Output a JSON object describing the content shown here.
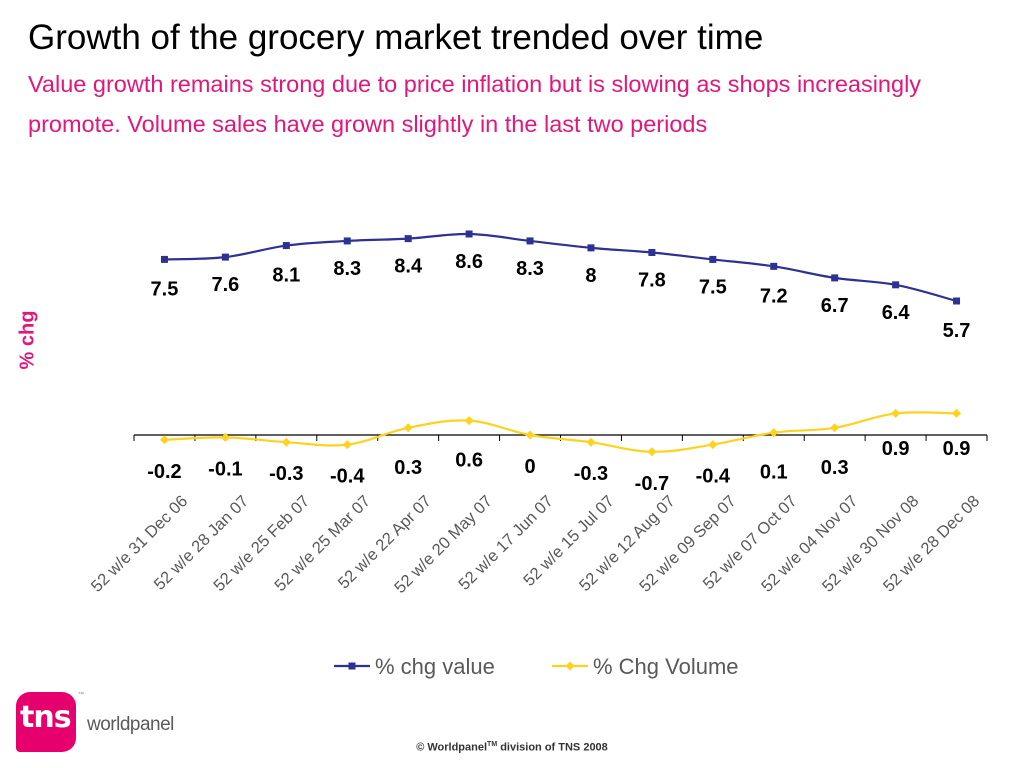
{
  "title": "Growth of the grocery market trended over time",
  "subtitle": "Value growth remains strong due to price inflation but is slowing as shops increasingly promote. Volume sales have grown slightly in the last two periods",
  "footer": {
    "prefix": "© Worldpanel",
    "tm": "TM",
    "suffix": " division of TNS 2008"
  },
  "logo": {
    "brand": "tns",
    "tm": "™",
    "product": "worldpanel"
  },
  "colors": {
    "value_series": "#2e3192",
    "volume_series": "#ffd21f",
    "subtitle": "#e0187c",
    "axis_label": "#e0187c",
    "logo": "#e6006e"
  },
  "chart_data": {
    "type": "line",
    "title": "",
    "ylabel": "% chg",
    "xlabel": "",
    "grid": false,
    "legend_position": "bottom",
    "categories": [
      "52 w/e 31 Dec 06",
      "52 w/e 28 Jan 07",
      "52 w/e 25 Feb 07",
      "52 w/e 25 Mar 07",
      "52 w/e 22 Apr 07",
      "52 w/e 20 May 07",
      "52 w/e 17 Jun 07",
      "52 w/e 15 Jul 07",
      "52 w/e 12 Aug 07",
      "52 w/e 09 Sep 07",
      "52 w/e 07 Oct 07",
      "52 w/e 04 Nov 07",
      "52 w/e 30 Nov 08",
      "52 w/e 28 Dec 08"
    ],
    "series": [
      {
        "name": "% chg value",
        "color": "#2e3192",
        "marker": "square",
        "values": [
          7.5,
          7.6,
          8.1,
          8.3,
          8.4,
          8.6,
          8.3,
          8,
          7.8,
          7.5,
          7.2,
          6.7,
          6.4,
          5.7
        ],
        "labels": [
          "7.5",
          "7.6",
          "8.1",
          "8.3",
          "8.4",
          "8.6",
          "8.3",
          "8",
          "7.8",
          "7.5",
          "7.2",
          "6.7",
          "6.4",
          "5.7"
        ]
      },
      {
        "name": "% Chg Volume",
        "color": "#ffd21f",
        "marker": "diamond",
        "values": [
          -0.2,
          -0.1,
          -0.3,
          -0.4,
          0.3,
          0.6,
          0,
          -0.3,
          -0.7,
          -0.4,
          0.1,
          0.3,
          0.9,
          0.9
        ],
        "labels": [
          "-0.2",
          "-0.1",
          "-0.3",
          "-0.4",
          "0.3",
          "0.6",
          "0",
          "-0.3",
          "-0.7",
          "-0.4",
          "0.1",
          "0.3",
          "0.9",
          "0.9"
        ]
      }
    ]
  }
}
